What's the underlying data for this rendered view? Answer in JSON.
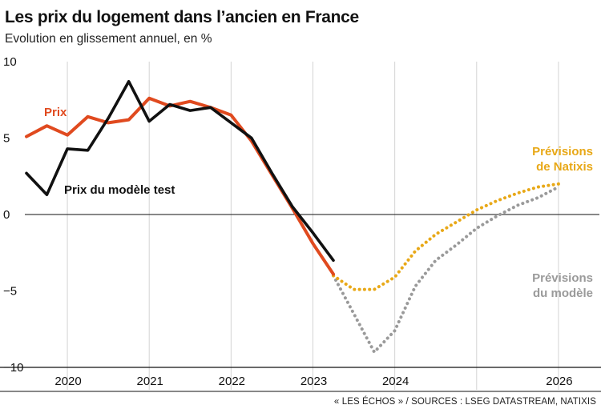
{
  "header": {
    "title": "Les prix du logement dans l’ancien en France",
    "subtitle": "Evolution en glissement annuel, en %"
  },
  "chart_data": {
    "type": "line",
    "ylim": [
      -10,
      10
    ],
    "yticks": [
      10,
      5,
      0,
      -5,
      -10
    ],
    "ytick_labels": [
      "10",
      "5",
      "0",
      "−5",
      "−10"
    ],
    "xlim": [
      2019.5,
      2026.5
    ],
    "xticks": [
      2020,
      2021,
      2022,
      2023,
      2024,
      2026
    ],
    "xtick_labels": [
      "2020",
      "2021",
      "2022",
      "2023",
      "2024",
      "2026"
    ],
    "grid_years": [
      2020,
      2021,
      2022,
      2023,
      2024,
      2025,
      2026
    ],
    "zero_line": true,
    "colors": {
      "prix": "#e04a1f",
      "modele": "#111111",
      "prev_natixis": "#e8a817",
      "prev_modele": "#9a9a9a",
      "grid": "#d4d4d4"
    },
    "series": [
      {
        "key": "prix",
        "name": "Prix",
        "style": "solid",
        "points": [
          [
            2019.5,
            5.1
          ],
          [
            2019.75,
            5.8
          ],
          [
            2020.0,
            5.2
          ],
          [
            2020.25,
            6.4
          ],
          [
            2020.5,
            6.0
          ],
          [
            2020.75,
            6.2
          ],
          [
            2021.0,
            7.6
          ],
          [
            2021.25,
            7.1
          ],
          [
            2021.5,
            7.4
          ],
          [
            2021.75,
            7.0
          ],
          [
            2022.0,
            6.5
          ],
          [
            2022.25,
            4.8
          ],
          [
            2022.5,
            2.6
          ],
          [
            2022.75,
            0.4
          ],
          [
            2023.0,
            -1.9
          ],
          [
            2023.25,
            -3.9
          ]
        ]
      },
      {
        "key": "modele",
        "name": "Prix du modèle test",
        "style": "solid",
        "points": [
          [
            2019.5,
            2.7
          ],
          [
            2019.75,
            1.3
          ],
          [
            2020.0,
            4.3
          ],
          [
            2020.25,
            4.2
          ],
          [
            2020.5,
            6.3
          ],
          [
            2020.75,
            8.7
          ],
          [
            2021.0,
            6.1
          ],
          [
            2021.25,
            7.2
          ],
          [
            2021.5,
            6.8
          ],
          [
            2021.75,
            7.0
          ],
          [
            2022.0,
            6.0
          ],
          [
            2022.25,
            5.0
          ],
          [
            2022.5,
            2.7
          ],
          [
            2022.75,
            0.5
          ],
          [
            2023.0,
            -1.2
          ],
          [
            2023.25,
            -3.0
          ]
        ]
      },
      {
        "key": "prev_natixis",
        "name": "Prévisions de Natixis",
        "style": "dotted",
        "points": [
          [
            2023.25,
            -4.0
          ],
          [
            2023.5,
            -4.9
          ],
          [
            2023.75,
            -4.9
          ],
          [
            2024.0,
            -4.1
          ],
          [
            2024.25,
            -2.4
          ],
          [
            2024.5,
            -1.3
          ],
          [
            2024.75,
            -0.5
          ],
          [
            2025.0,
            0.3
          ],
          [
            2025.25,
            0.9
          ],
          [
            2025.5,
            1.4
          ],
          [
            2025.75,
            1.8
          ],
          [
            2026.0,
            2.0
          ]
        ]
      },
      {
        "key": "prev_modele",
        "name": "Prévisions du modèle",
        "style": "dotted",
        "points": [
          [
            2023.25,
            -4.0
          ],
          [
            2023.5,
            -6.5
          ],
          [
            2023.75,
            -9.0
          ],
          [
            2024.0,
            -7.6
          ],
          [
            2024.25,
            -4.7
          ],
          [
            2024.5,
            -3.0
          ],
          [
            2024.75,
            -2.0
          ],
          [
            2025.0,
            -0.9
          ],
          [
            2025.25,
            -0.1
          ],
          [
            2025.5,
            0.6
          ],
          [
            2025.75,
            1.1
          ],
          [
            2026.0,
            1.8
          ]
        ]
      }
    ],
    "labels": {
      "prix": "Prix",
      "modele": "Prix du modèle test",
      "prev_natixis_1": "Prévisions",
      "prev_natixis_2": "de Natixis",
      "prev_modele_1": "Prévisions",
      "prev_modele_2": "du modèle"
    }
  },
  "footer": {
    "source": "« LES ÉCHOS » / SOURCES : LSEG DATASTREAM, NATIXIS"
  }
}
